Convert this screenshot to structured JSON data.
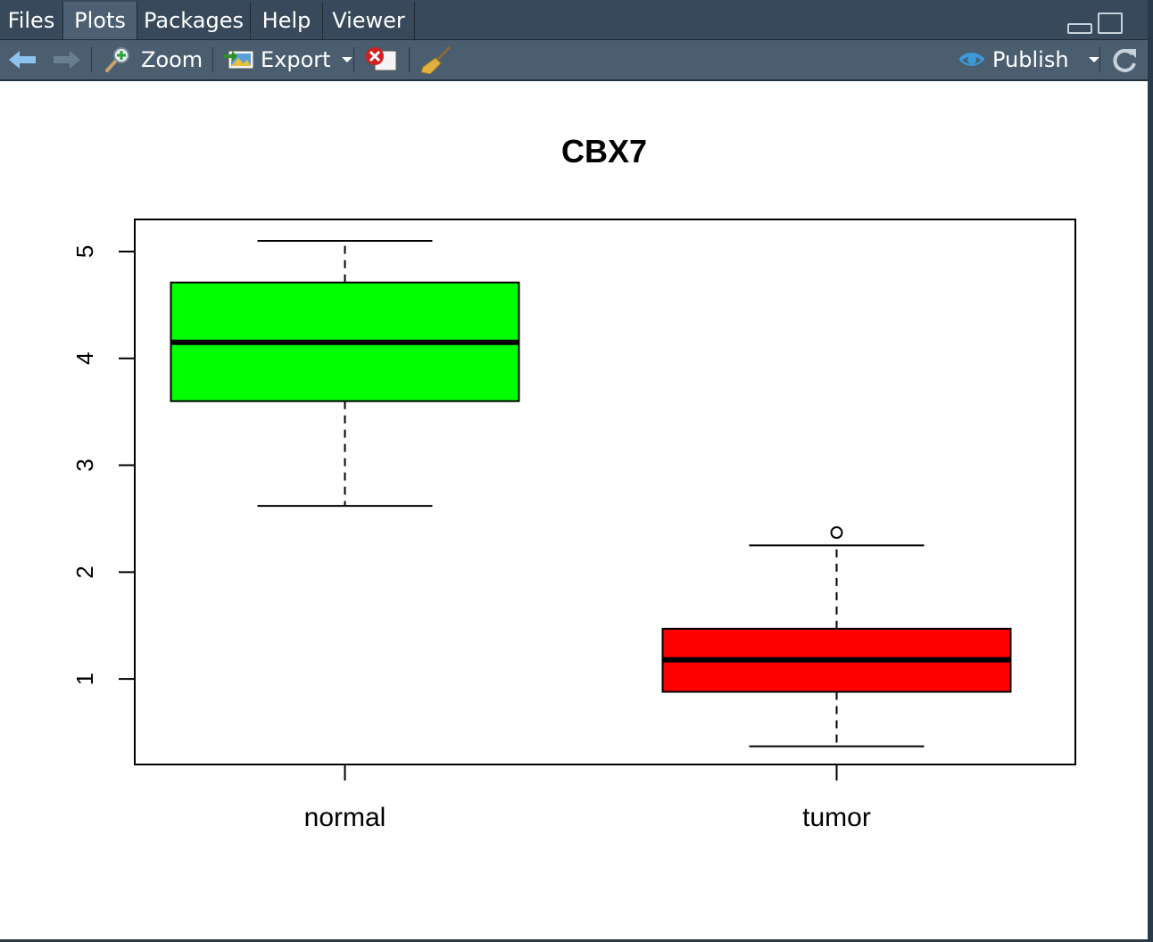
{
  "tabs": [
    {
      "label": "Files",
      "active": false
    },
    {
      "label": "Plots",
      "active": true
    },
    {
      "label": "Packages",
      "active": false
    },
    {
      "label": "Help",
      "active": false
    },
    {
      "label": "Viewer",
      "active": false
    }
  ],
  "toolbar": {
    "zoom_label": "Zoom",
    "export_label": "Export",
    "publish_label": "Publish",
    "icons": [
      "back-arrow-icon",
      "forward-arrow-icon",
      "zoom-icon",
      "export-image-icon",
      "remove-plot-icon",
      "broom-icon",
      "publish-icon",
      "refresh-icon"
    ]
  },
  "colors": {
    "tabbar": "#37495a",
    "active_tab": "#4d6073",
    "toolbar": "#4b5e70",
    "publish_icon": "#3b9bd8"
  },
  "chart_data": {
    "type": "boxplot",
    "title": "CBX7",
    "xlabel": "",
    "ylabel": "",
    "categories": [
      "normal",
      "tumor"
    ],
    "ylim": [
      0.2,
      5.3
    ],
    "yticks": [
      1,
      2,
      3,
      4,
      5
    ],
    "grid": false,
    "boxes": [
      {
        "name": "normal",
        "fill": "#00ff00",
        "whisker_low": 2.62,
        "q1": 3.6,
        "median": 4.15,
        "q3": 4.71,
        "whisker_high": 5.1,
        "outliers": []
      },
      {
        "name": "tumor",
        "fill": "#ff0000",
        "whisker_low": 0.37,
        "q1": 0.88,
        "median": 1.18,
        "q3": 1.47,
        "whisker_high": 2.25,
        "outliers": [
          2.37
        ]
      }
    ]
  }
}
